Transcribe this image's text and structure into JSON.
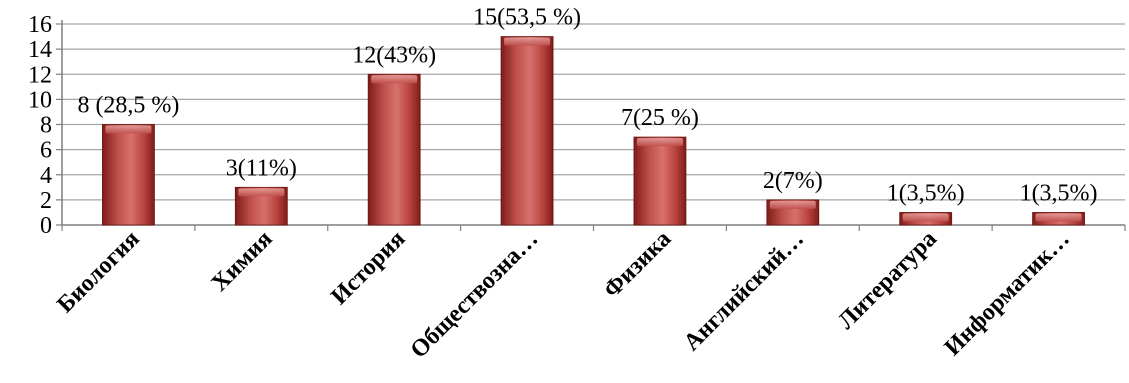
{
  "chart_data": {
    "type": "bar",
    "categories": [
      "Биология",
      "Химия",
      "История",
      "Обществозна…",
      "Физика",
      "Английский…",
      "Литература",
      "Информатик…"
    ],
    "values": [
      8,
      3,
      12,
      15,
      7,
      2,
      1,
      1
    ],
    "data_labels": [
      "8 (28,5 %)",
      "3(11%)",
      "12(43%)",
      "15(53,5 %)",
      "7(25 %)",
      "2(7%)",
      "1(3,5%)",
      "1(3,5%)"
    ],
    "ylim": [
      0,
      16
    ],
    "yticks": [
      "0",
      "2",
      "4",
      "6",
      "8",
      "10",
      "12",
      "14",
      "16"
    ],
    "grid": true,
    "legend": "none",
    "colors": {
      "bar_dark": "#7f1c18",
      "bar_mid": "#c0504d",
      "bar_light": "#e8a19e",
      "grid": "#a6a6a6",
      "axis": "#7f7f7f"
    }
  }
}
